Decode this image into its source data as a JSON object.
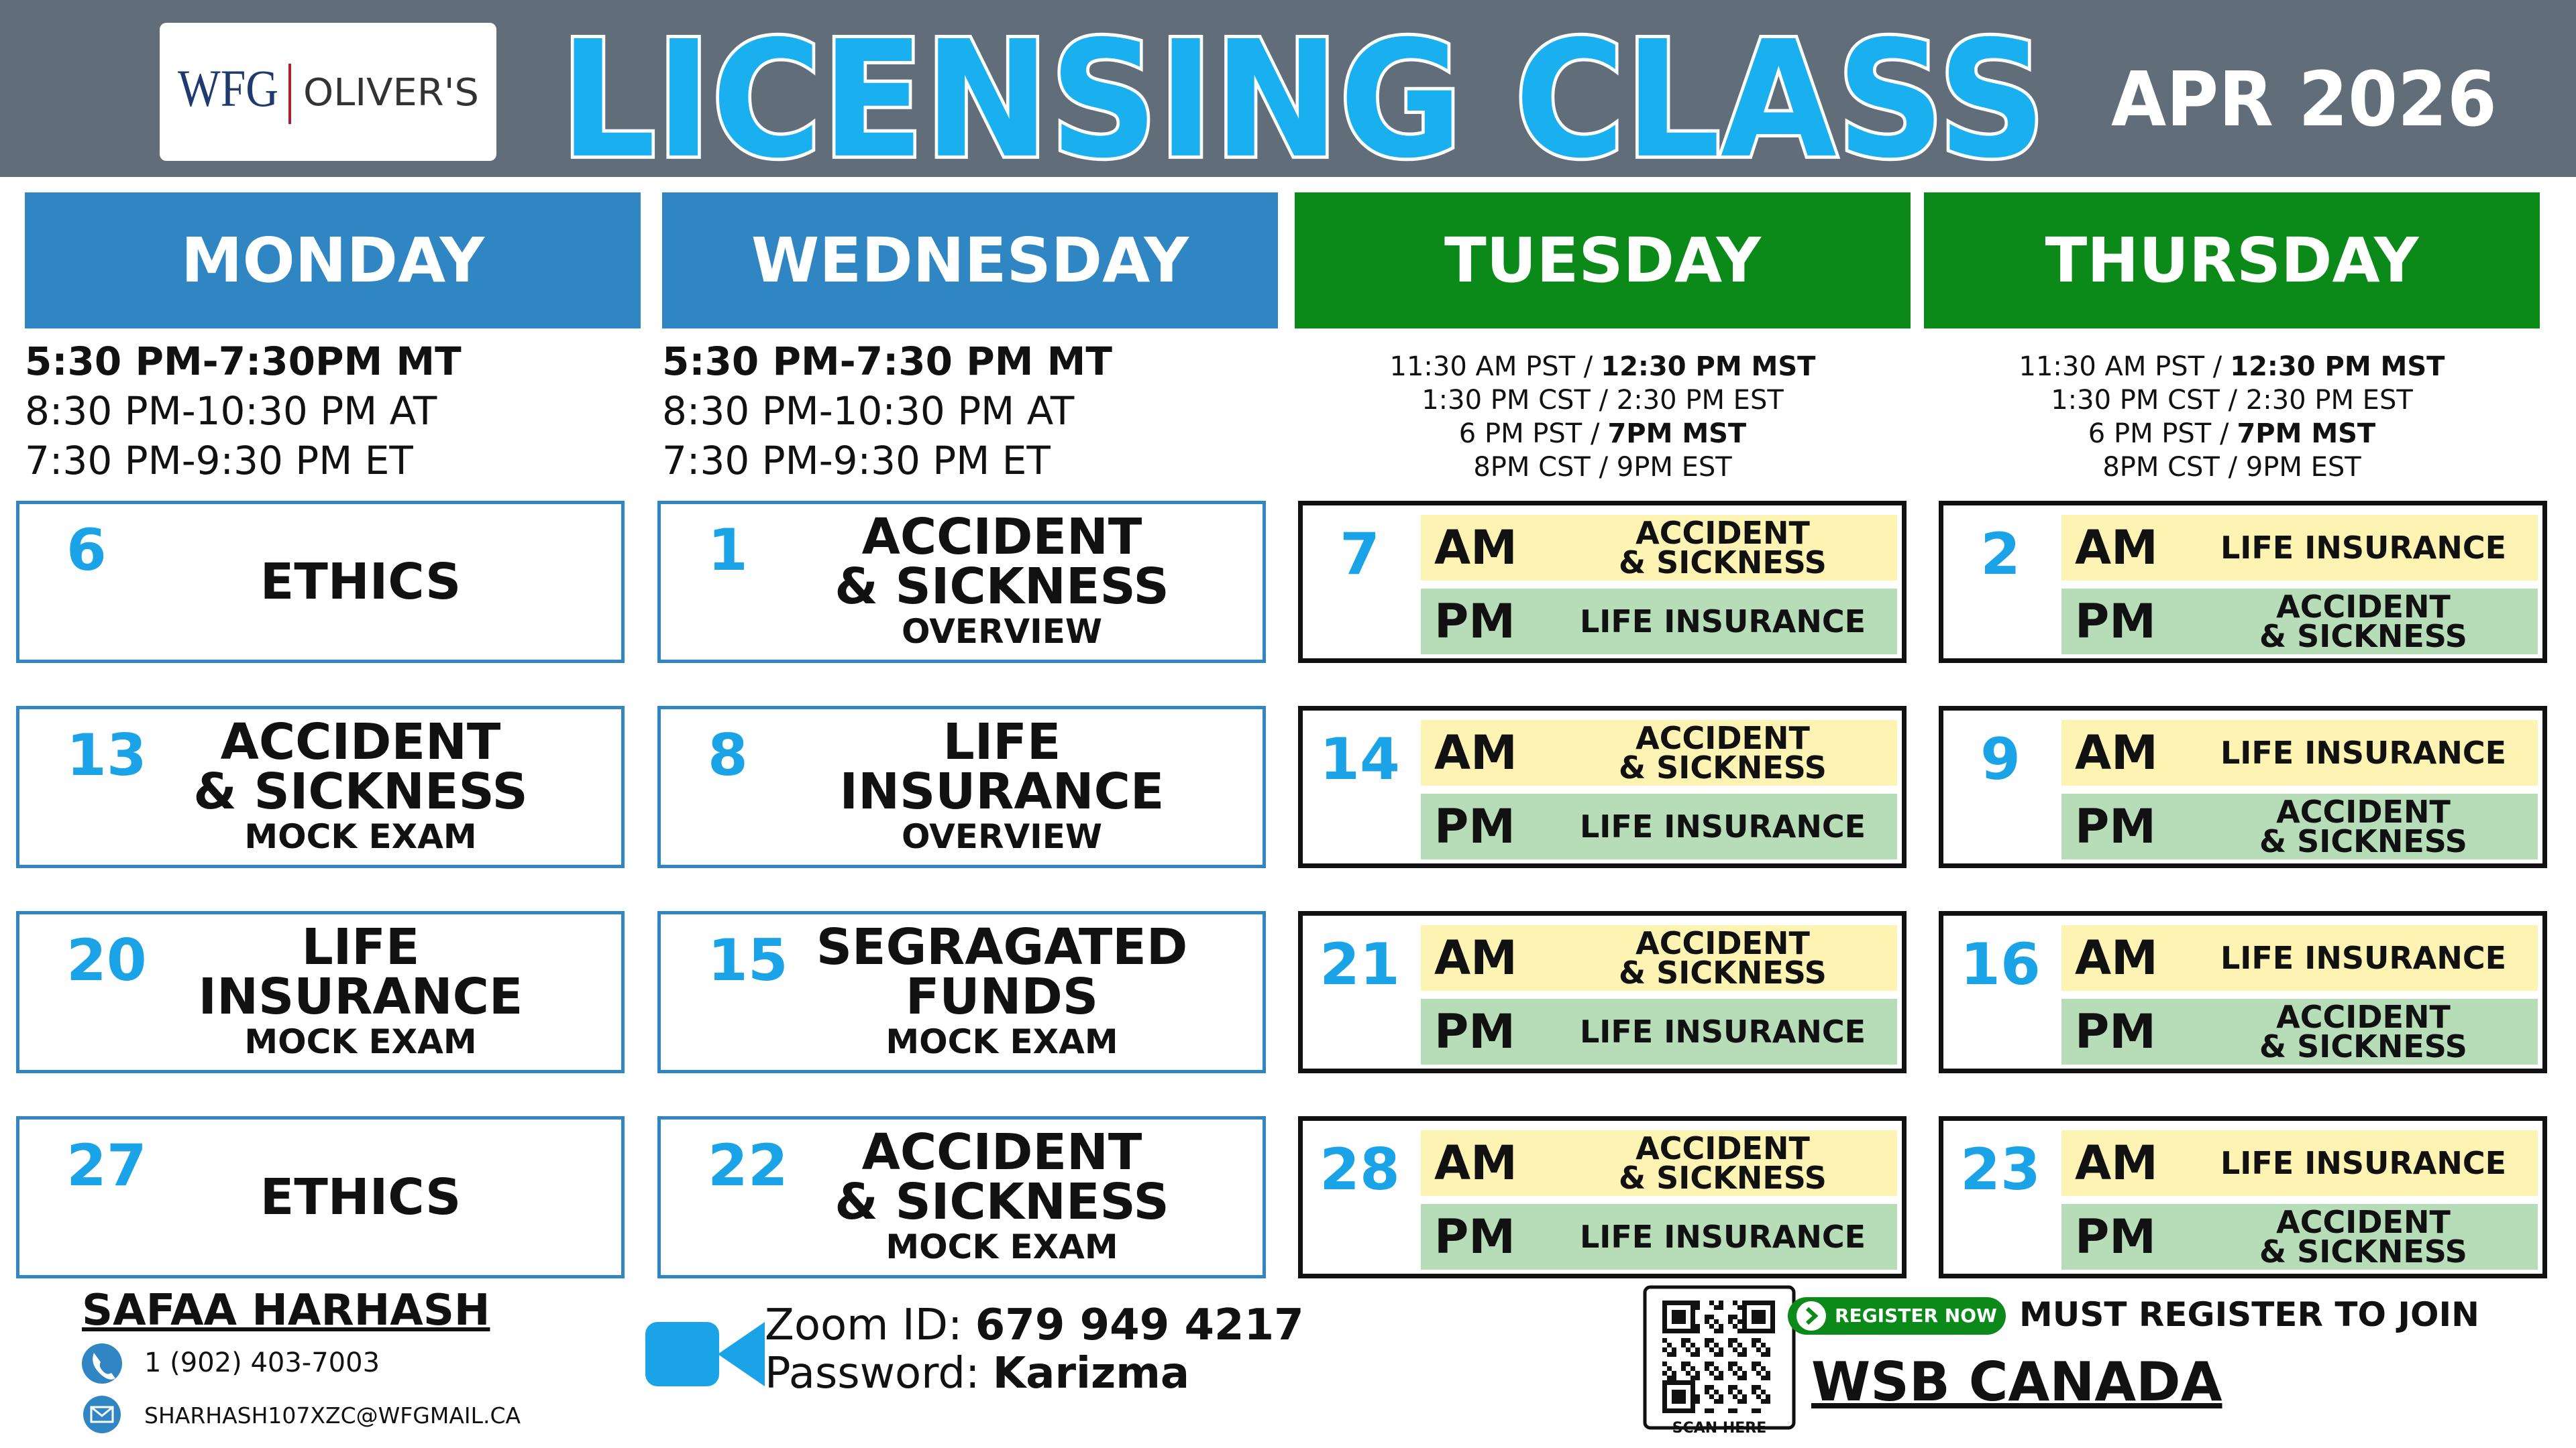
{
  "header": {
    "logo_mark": "WFG",
    "logo_text": "OLIVER'S",
    "title": "LICENSING CLASS",
    "date": "APR 2026"
  },
  "columns": [
    {
      "day": "MONDAY",
      "color": "#2f86c3",
      "times": [
        [
          {
            "text": "5:30 PM-7:30PM MT",
            "bold": true
          }
        ],
        [
          {
            "text": "8:30 PM-10:30 PM AT"
          }
        ],
        [
          {
            "text": "7:30 PM-9:30 PM ET"
          }
        ]
      ],
      "sessions": [
        {
          "date": "6",
          "title": [
            "ETHICS"
          ]
        },
        {
          "date": "13",
          "title": [
            "ACCIDENT",
            "& SICKNESS"
          ],
          "sub": "MOCK EXAM"
        },
        {
          "date": "20",
          "title": [
            "LIFE",
            "INSURANCE"
          ],
          "sub": "MOCK EXAM"
        },
        {
          "date": "27",
          "title": [
            "ETHICS"
          ]
        }
      ]
    },
    {
      "day": "WEDNESDAY",
      "color": "#2f86c3",
      "times": [
        [
          {
            "text": "5:30 PM-7:30 PM MT",
            "bold": true
          }
        ],
        [
          {
            "text": "8:30 PM-10:30 PM AT"
          }
        ],
        [
          {
            "text": "7:30 PM-9:30 PM ET"
          }
        ]
      ],
      "sessions": [
        {
          "date": "1",
          "title": [
            "ACCIDENT",
            "& SICKNESS"
          ],
          "sub": "OVERVIEW"
        },
        {
          "date": "8",
          "title": [
            "LIFE",
            "INSURANCE"
          ],
          "sub": "OVERVIEW"
        },
        {
          "date": "15",
          "title": [
            "SEGRAGATED",
            "FUNDS"
          ],
          "sub": "MOCK EXAM"
        },
        {
          "date": "22",
          "title": [
            "ACCIDENT",
            "& SICKNESS"
          ],
          "sub": "MOCK EXAM"
        }
      ]
    },
    {
      "day": "TUESDAY",
      "color": "#0b8a1a",
      "times": [
        [
          {
            "text": "11:30 AM PST /"
          },
          {
            "text": "12:30 PM MST",
            "bold": true
          }
        ],
        [
          {
            "text": "1:30 PM CST / 2:30 PM EST"
          }
        ],
        [
          {
            "text": "6 PM PST /"
          },
          {
            "text": "7PM MST",
            "bold": true
          }
        ],
        [
          {
            "text": "8PM CST / 9PM EST"
          }
        ]
      ],
      "slot_labels": [
        "AM",
        "PM"
      ],
      "sessions": [
        {
          "date": "7",
          "slots": [
            [
              "ACCIDENT",
              "& SICKNESS"
            ],
            [
              "LIFE INSURANCE"
            ]
          ]
        },
        {
          "date": "14",
          "slots": [
            [
              "ACCIDENT",
              "& SICKNESS"
            ],
            [
              "LIFE INSURANCE"
            ]
          ]
        },
        {
          "date": "21",
          "slots": [
            [
              "ACCIDENT",
              "& SICKNESS"
            ],
            [
              "LIFE INSURANCE"
            ]
          ]
        },
        {
          "date": "28",
          "slots": [
            [
              "ACCIDENT",
              "& SICKNESS"
            ],
            [
              "LIFE INSURANCE"
            ]
          ]
        }
      ]
    },
    {
      "day": "THURSDAY",
      "color": "#0b8a1a",
      "times": [
        [
          {
            "text": "11:30 AM PST /"
          },
          {
            "text": "12:30 PM MST",
            "bold": true
          }
        ],
        [
          {
            "text": "1:30 PM CST / 2:30 PM EST"
          }
        ],
        [
          {
            "text": "6 PM PST /"
          },
          {
            "text": "7PM MST",
            "bold": true
          }
        ],
        [
          {
            "text": "8PM CST / 9PM EST"
          }
        ]
      ],
      "slot_labels": [
        "AM",
        "PM"
      ],
      "sessions": [
        {
          "date": "2",
          "slots": [
            [
              "LIFE INSURANCE"
            ],
            [
              "ACCIDENT",
              "& SICKNESS"
            ]
          ]
        },
        {
          "date": "9",
          "slots": [
            [
              "LIFE INSURANCE"
            ],
            [
              "ACCIDENT",
              "& SICKNESS"
            ]
          ]
        },
        {
          "date": "16",
          "slots": [
            [
              "LIFE INSURANCE"
            ],
            [
              "ACCIDENT",
              "& SICKNESS"
            ]
          ]
        },
        {
          "date": "23",
          "slots": [
            [
              "LIFE INSURANCE"
            ],
            [
              "ACCIDENT",
              "& SICKNESS"
            ]
          ]
        }
      ]
    }
  ],
  "contact": {
    "name": "SAFAA HARHASH",
    "phone": "1 (902) 403-7003",
    "email": "SHARHASH107XZC@WFGMAIL.CA"
  },
  "zoom": {
    "id_label": "Zoom ID:",
    "id": "679 949 4217",
    "password_label": "Password:",
    "password": "Karizma"
  },
  "register": {
    "qr_caption": "SCAN HERE",
    "button": "REGISTER NOW",
    "note": "MUST REGISTER TO JOIN",
    "org": "WSB CANADA"
  }
}
